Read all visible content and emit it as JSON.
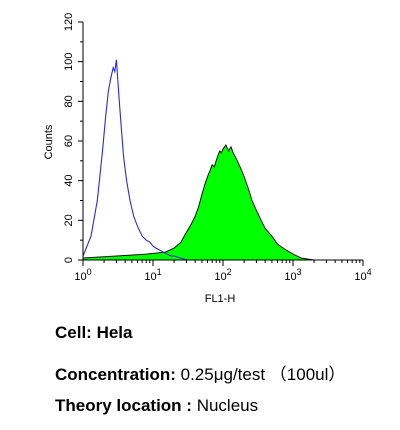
{
  "chart_data": {
    "type": "area",
    "title": "",
    "xlabel": "FL1-H",
    "ylabel": "Counts",
    "x_scale": "log",
    "xlim": [
      1,
      10000
    ],
    "ylim": [
      0,
      120
    ],
    "x_ticks": [
      {
        "base": "10",
        "exp": "0"
      },
      {
        "base": "10",
        "exp": "1"
      },
      {
        "base": "10",
        "exp": "2"
      },
      {
        "base": "10",
        "exp": "3"
      },
      {
        "base": "10",
        "exp": "4"
      }
    ],
    "y_ticks": [
      "0",
      "20",
      "40",
      "60",
      "80",
      "100",
      "120"
    ],
    "grid": false,
    "series": [
      {
        "style": "outline",
        "color": "#2b2bd6",
        "x": [
          1.0,
          1.3,
          1.6,
          1.9,
          2.1,
          2.3,
          2.5,
          2.7,
          2.85,
          3.0,
          3.15,
          3.3,
          3.5,
          3.8,
          4.2,
          4.7,
          5.3,
          6.0,
          7.0,
          8.0,
          9.0,
          10.0,
          11.0,
          12.5,
          14.0,
          16.0,
          18.0,
          20.0,
          25.0,
          30.0
        ],
        "values": [
          2,
          12,
          30,
          55,
          72,
          85,
          92,
          97,
          95,
          101,
          90,
          80,
          68,
          52,
          40,
          30,
          22,
          17,
          12,
          10,
          9,
          7,
          6,
          5,
          4,
          3,
          2,
          2,
          1,
          0
        ]
      },
      {
        "style": "filled",
        "color": "#00ff00",
        "edge": "#111111",
        "x": [
          1.0,
          3.0,
          8.0,
          15.0,
          20.0,
          25.0,
          30.0,
          35.0,
          40.0,
          45.0,
          50.0,
          55.0,
          60.0,
          65.0,
          70.0,
          75.0,
          80.0,
          85.0,
          90.0,
          95.0,
          100.0,
          110.0,
          120.0,
          130.0,
          140.0,
          150.0,
          160.0,
          180.0,
          200.0,
          230.0,
          260.0,
          300.0,
          350.0,
          400.0,
          500.0,
          600.0,
          800.0,
          1000.0,
          1300.0,
          2000.0
        ],
        "values": [
          1,
          2,
          3,
          4,
          6,
          9,
          14,
          18,
          22,
          27,
          33,
          38,
          42,
          45,
          48,
          47,
          50,
          53,
          55,
          54,
          56,
          58,
          55,
          57,
          54,
          52,
          50,
          46,
          42,
          36,
          30,
          25,
          20,
          16,
          12,
          8,
          5,
          3,
          1,
          0
        ]
      }
    ]
  },
  "captions": {
    "cell": {
      "label": "Cell:",
      "value": "Hela"
    },
    "concentration": {
      "label": "Concentration:",
      "value": "0.25μg/test （100ul）"
    },
    "theory_location": {
      "label": "Theory location :",
      "value": "Nucleus"
    }
  }
}
